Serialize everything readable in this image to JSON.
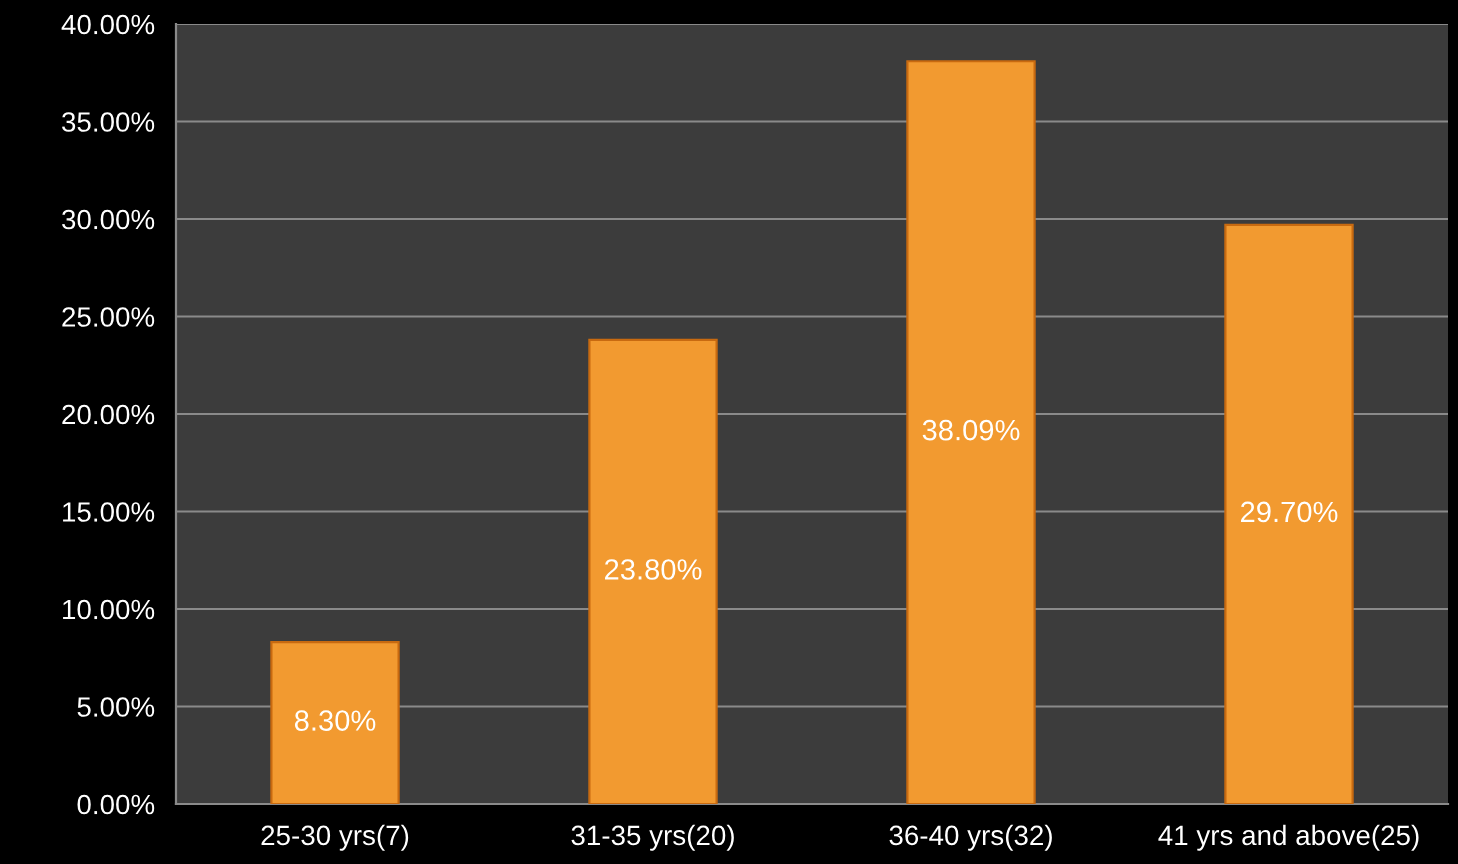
{
  "chart_data": {
    "type": "bar",
    "categories": [
      "25-30 yrs(7)",
      "31-35 yrs(20)",
      "36-40 yrs(32)",
      "41 yrs and above(25)"
    ],
    "values": [
      8.3,
      23.8,
      38.09,
      29.7
    ],
    "value_labels": [
      "8.30%",
      "23.80%",
      "38.09%",
      "29.70%"
    ],
    "color": "#f29a30",
    "ylim": [
      0,
      40
    ],
    "yticks": [
      {
        "value": 0,
        "label": "0.00%"
      },
      {
        "value": 5,
        "label": "5.00%"
      },
      {
        "value": 10,
        "label": "10.00%"
      },
      {
        "value": 15,
        "label": "15.00%"
      },
      {
        "value": 20,
        "label": "20.00%"
      },
      {
        "value": 25,
        "label": "25.00%"
      },
      {
        "value": 30,
        "label": "30.00%"
      },
      {
        "value": 35,
        "label": "35.00%"
      },
      {
        "value": 40,
        "label": "40.00%"
      }
    ],
    "grid": "y"
  }
}
